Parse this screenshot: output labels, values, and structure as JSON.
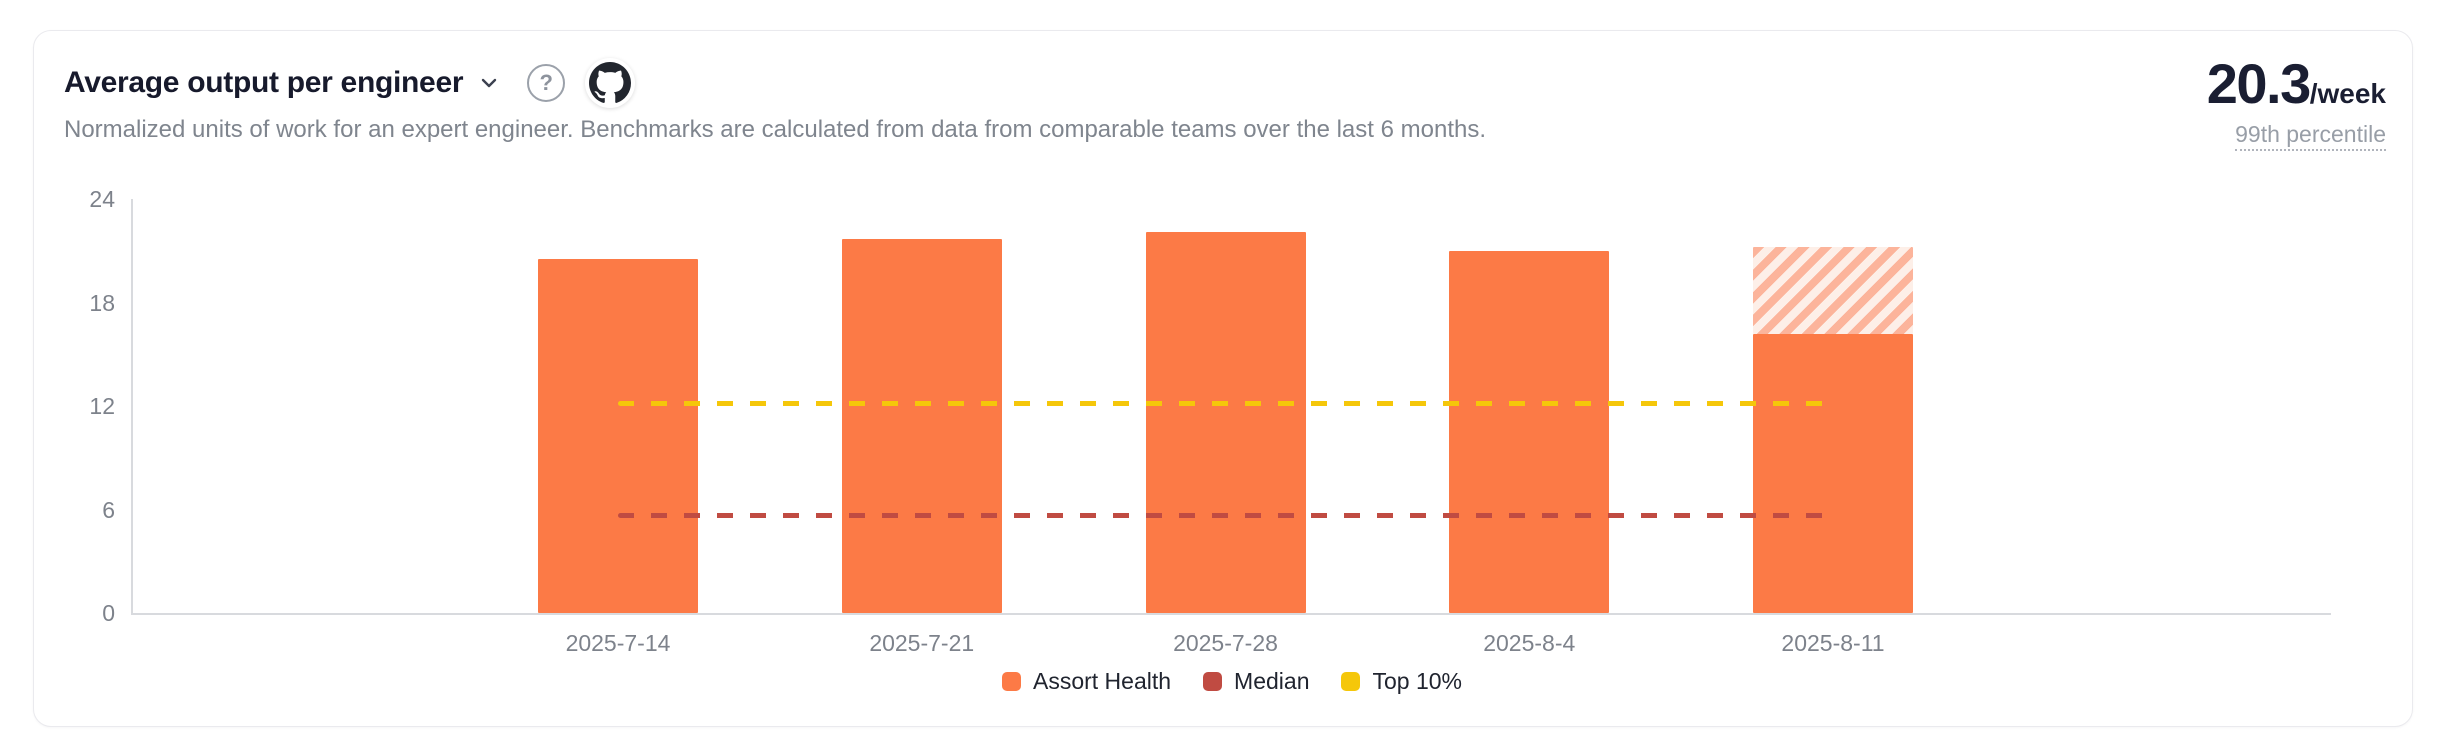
{
  "card": {
    "title": "Average output per engineer",
    "subtitle": "Normalized units of work for an expert engineer. Benchmarks are calculated from data from comparable teams over the last 6 months.",
    "metric": {
      "value": "20.3",
      "unit": "/week",
      "caption": "99th percentile"
    }
  },
  "icons": {
    "title_dropdown": "chevron-down",
    "help": "question-mark-circle",
    "help_glyph": "?",
    "source": "github"
  },
  "chart_data": {
    "type": "bar",
    "title": "Average output per engineer",
    "categories": [
      "2025-7-14",
      "2025-7-21",
      "2025-7-28",
      "2025-8-4",
      "2025-8-11"
    ],
    "series": [
      {
        "name": "Assort Health",
        "type": "bar",
        "color": "#fc7a46",
        "values": [
          20.5,
          21.7,
          22.1,
          21.0,
          16.2
        ],
        "projected_values": [
          null,
          null,
          null,
          null,
          21.2
        ],
        "projected_style": "hatched",
        "hatch_colors": [
          "#fcb49b",
          "#fdefe8"
        ]
      },
      {
        "name": "Median",
        "type": "dashed-line",
        "color": "#c04b42",
        "values": [
          5.7,
          5.7,
          5.7,
          5.7,
          5.7
        ]
      },
      {
        "name": "Top 10%",
        "type": "dashed-line",
        "color": "#f5c70a",
        "values": [
          12.2,
          12.2,
          12.2,
          12.2,
          12.2
        ]
      }
    ],
    "ylim": [
      0,
      24
    ],
    "yticks": [
      0,
      6,
      12,
      18,
      24
    ],
    "xlabel": "",
    "ylabel": "",
    "grid": false,
    "legend_position": "bottom"
  }
}
